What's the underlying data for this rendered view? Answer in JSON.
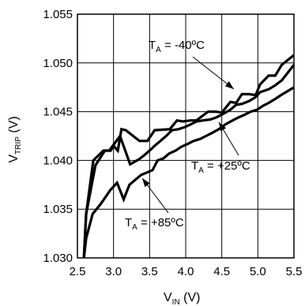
{
  "chart_data": {
    "type": "line",
    "xlabel": {
      "main": "V",
      "sub": "IN",
      "unit": " (V)"
    },
    "ylabel": {
      "main": "V",
      "sub": "TRIP",
      "unit": " (V)"
    },
    "xlim": [
      2.5,
      5.5
    ],
    "ylim": [
      1.03,
      1.055
    ],
    "xticks": [
      "2.5",
      "3.0",
      "3.5",
      "4.0",
      "4.5",
      "5.0",
      "5.5"
    ],
    "yticks": [
      "1.030",
      "1.035",
      "1.040",
      "1.045",
      "1.050",
      "1.055"
    ],
    "grid": true,
    "series": [
      {
        "name": "TA = -40ºC",
        "label": {
          "pre": "T",
          "sub": "A",
          "post": " = -40ºC"
        },
        "x": [
          2.59,
          2.62,
          2.75,
          2.88,
          2.93,
          2.96,
          3.0,
          3.06,
          3.11,
          3.17,
          3.36,
          3.47,
          3.57,
          3.78,
          3.88,
          3.96,
          4.07,
          4.15,
          4.31,
          4.42,
          4.5,
          4.62,
          4.7,
          4.78,
          4.88,
          4.97,
          5.03,
          5.15,
          5.24,
          5.33,
          5.5
        ],
        "y": [
          1.03,
          1.0345,
          1.0395,
          1.041,
          1.041,
          1.041,
          1.0415,
          1.041,
          1.0432,
          1.0431,
          1.042,
          1.042,
          1.0431,
          1.0432,
          1.0441,
          1.044,
          1.0441,
          1.0441,
          1.045,
          1.045,
          1.0449,
          1.046,
          1.0459,
          1.0468,
          1.0468,
          1.0467,
          1.0478,
          1.0487,
          1.0487,
          1.0498,
          1.0508
        ]
      },
      {
        "name": "TA = +25ºC",
        "label": {
          "pre": "T",
          "sub": "A",
          "post": " = +25ºC"
        },
        "x": [
          2.59,
          2.62,
          2.72,
          2.86,
          2.94,
          3.09,
          3.23,
          3.35,
          3.42,
          3.5,
          3.57,
          3.65,
          3.73,
          3.81,
          3.9,
          3.98,
          4.07,
          4.15,
          4.24,
          4.34,
          4.42,
          4.5,
          4.62,
          4.7,
          4.78,
          4.88,
          4.97,
          5.03,
          5.15,
          5.24,
          5.33,
          5.5
        ],
        "y": [
          1.03,
          1.0345,
          1.04,
          1.041,
          1.041,
          1.0425,
          1.0396,
          1.0401,
          1.0405,
          1.041,
          1.0415,
          1.042,
          1.0425,
          1.0431,
          1.0432,
          1.0434,
          1.0437,
          1.044,
          1.0441,
          1.0442,
          1.0444,
          1.0447,
          1.0452,
          1.0457,
          1.0458,
          1.0461,
          1.0465,
          1.047,
          1.0473,
          1.0477,
          1.0482,
          1.0498
        ]
      },
      {
        "name": "TA = +85ºC",
        "label": {
          "pre": "T",
          "sub": "A",
          "post": " = +85ºC"
        },
        "x": [
          2.59,
          2.62,
          2.71,
          2.82,
          2.96,
          3.05,
          3.14,
          3.22,
          3.38,
          3.54,
          3.61,
          3.69,
          3.77,
          3.86,
          3.94,
          4.03,
          4.11,
          4.2,
          4.28,
          4.36,
          4.46,
          4.55,
          4.65,
          4.73,
          4.82,
          4.9,
          4.99,
          5.07,
          5.15,
          5.24,
          5.32,
          5.5
        ],
        "y": [
          1.03,
          1.032,
          1.0345,
          1.0355,
          1.037,
          1.0377,
          1.036,
          1.0375,
          1.0385,
          1.039,
          1.04,
          1.0402,
          1.0407,
          1.041,
          1.0414,
          1.0417,
          1.042,
          1.0422,
          1.0425,
          1.0428,
          1.0432,
          1.0437,
          1.0441,
          1.0444,
          1.0447,
          1.045,
          1.0452,
          1.0456,
          1.0459,
          1.0463,
          1.0467,
          1.0475
        ]
      }
    ]
  }
}
